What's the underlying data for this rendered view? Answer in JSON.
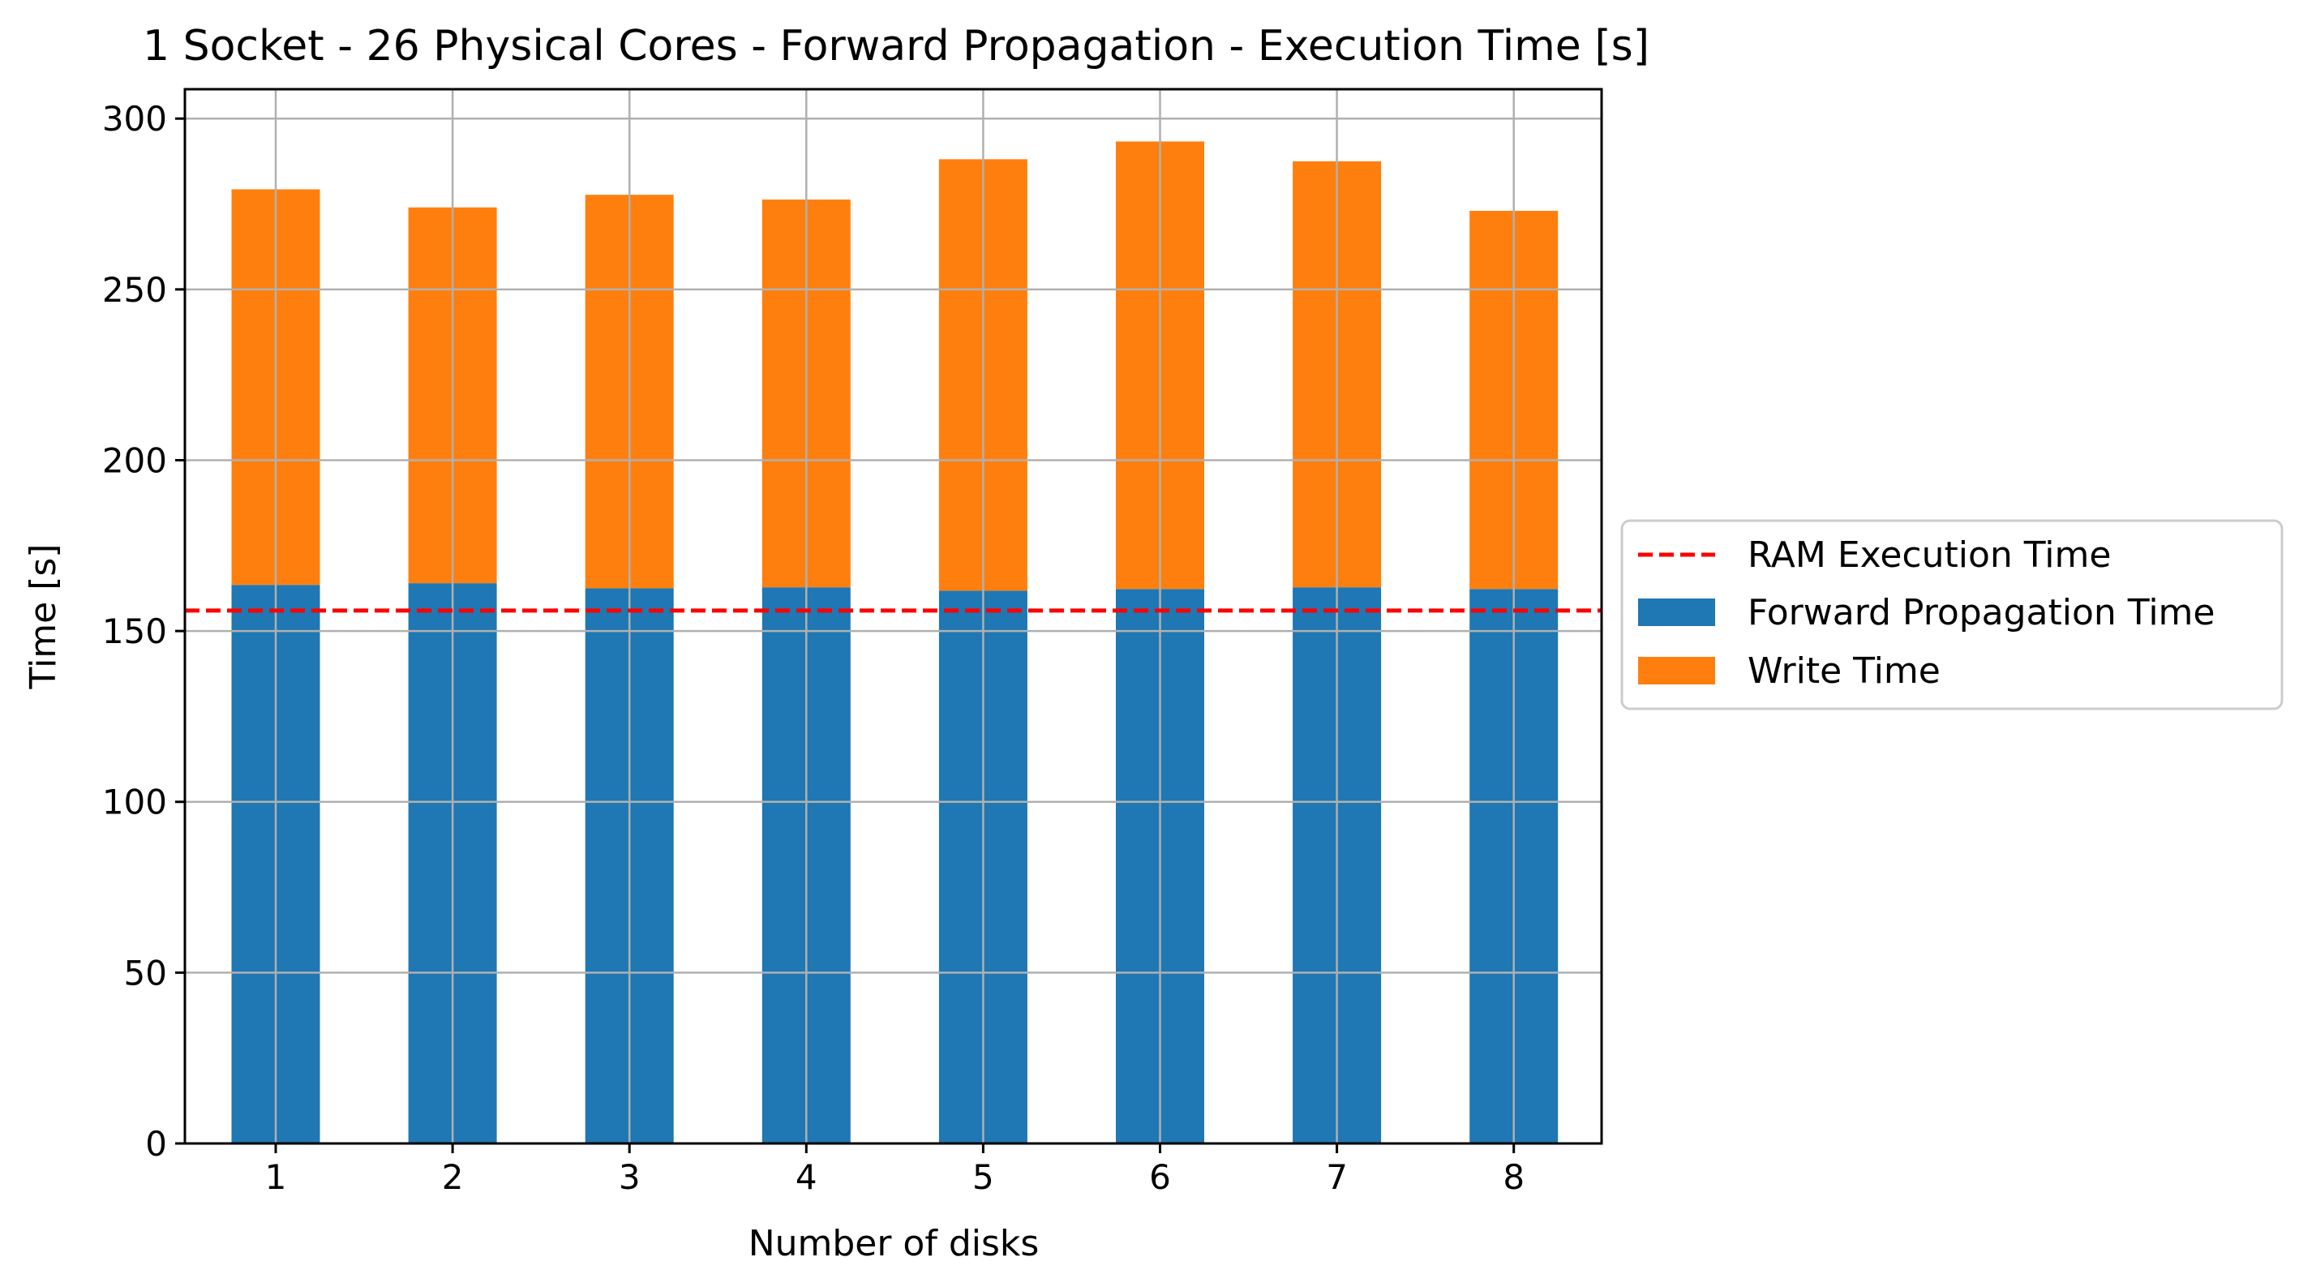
{
  "chart_data": {
    "type": "bar",
    "stacked": true,
    "title": "1 Socket - 26 Physical Cores - Forward Propagation - Execution Time [s]",
    "xlabel": "Number of disks",
    "ylabel": "Time [s]",
    "categories": [
      "1",
      "2",
      "3",
      "4",
      "5",
      "6",
      "7",
      "8"
    ],
    "series": [
      {
        "name": "Forward Propagation Time",
        "color": "#1f77b4",
        "values": [
          163.5,
          164.0,
          162.5,
          162.8,
          161.8,
          162.3,
          162.8,
          162.3
        ]
      },
      {
        "name": "Write Time",
        "color": "#ff7f0e",
        "values": [
          115.8,
          110.0,
          115.2,
          113.5,
          126.3,
          131.0,
          124.7,
          110.7
        ]
      }
    ],
    "reference_line": {
      "name": "RAM Execution Time",
      "value": 156,
      "color": "#ff0000",
      "style": "dashed"
    },
    "ylim": [
      0,
      308.6
    ],
    "yticks": [
      "0",
      "50",
      "100",
      "150",
      "200",
      "250",
      "300"
    ],
    "grid": true,
    "legend_position": "center-right-outside"
  }
}
